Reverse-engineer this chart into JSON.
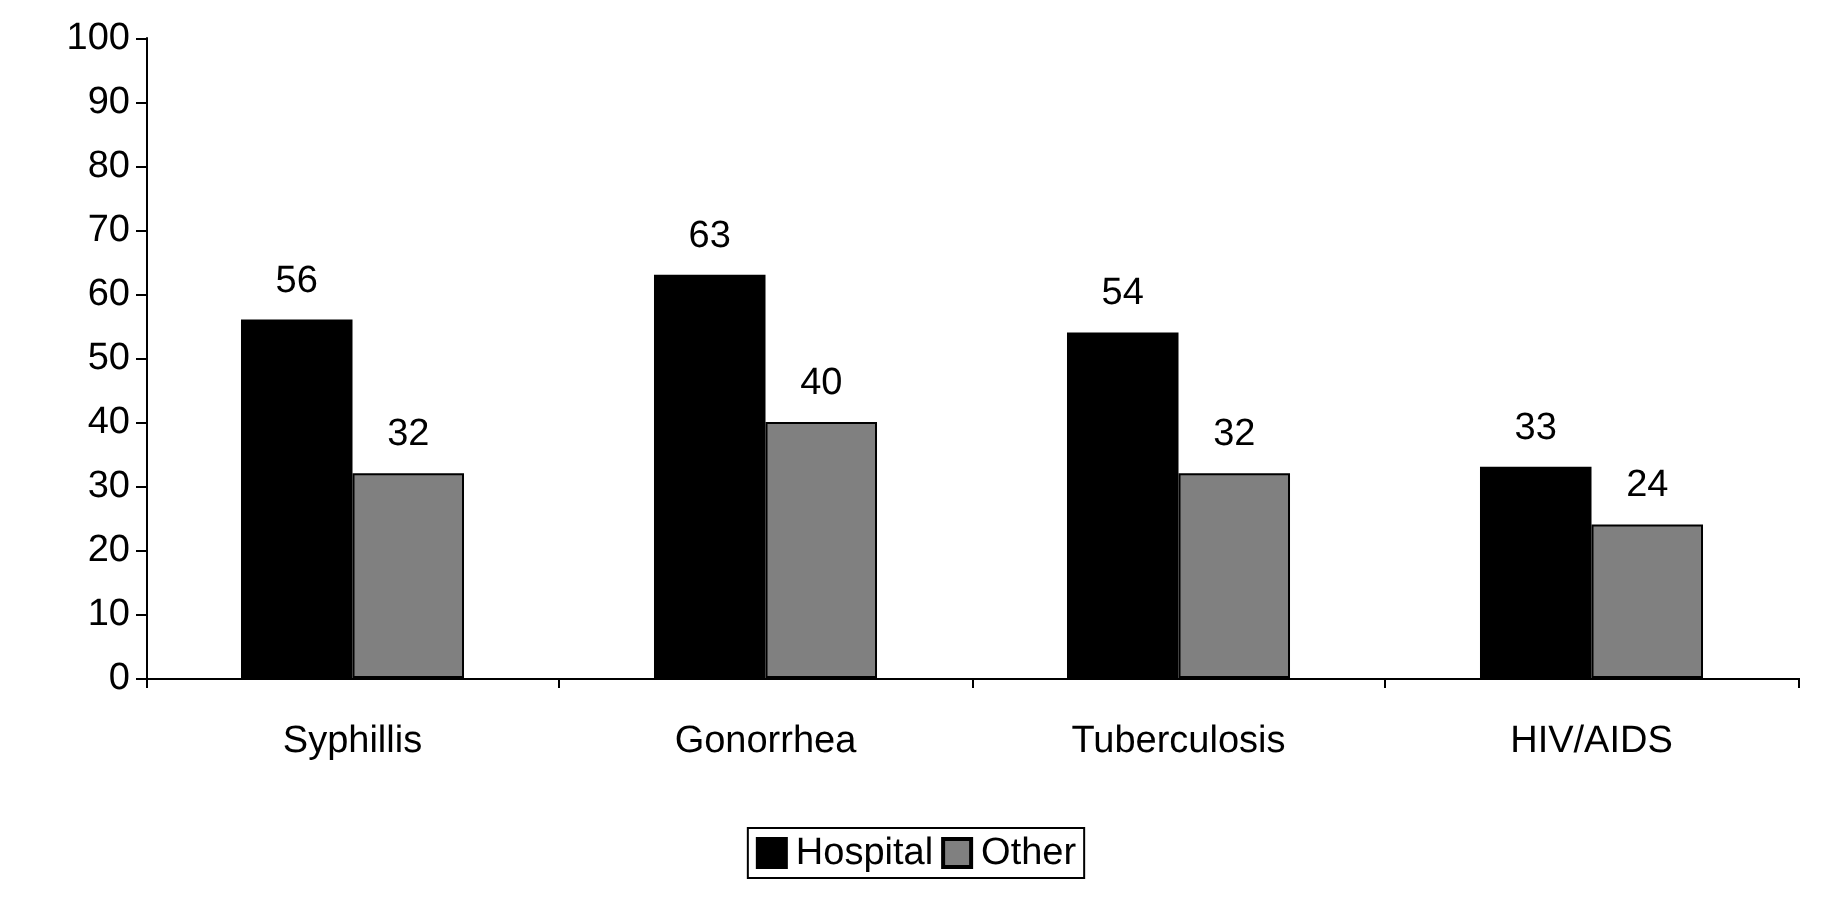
{
  "chart_data": {
    "type": "bar",
    "categories": [
      "Syphillis",
      "Gonorrhea",
      "Tuberculosis",
      "HIV/AIDS"
    ],
    "series": [
      {
        "name": "Hospital",
        "color": "#000000",
        "values": [
          56,
          63,
          54,
          33
        ]
      },
      {
        "name": "Other",
        "color": "#808080",
        "values": [
          32,
          40,
          32,
          24
        ]
      }
    ],
    "ylim": [
      0,
      100
    ],
    "yticks": [
      0,
      10,
      20,
      30,
      40,
      50,
      60,
      70,
      80,
      90,
      100
    ],
    "data_labels": true,
    "legend": "bottom",
    "grid": false
  }
}
